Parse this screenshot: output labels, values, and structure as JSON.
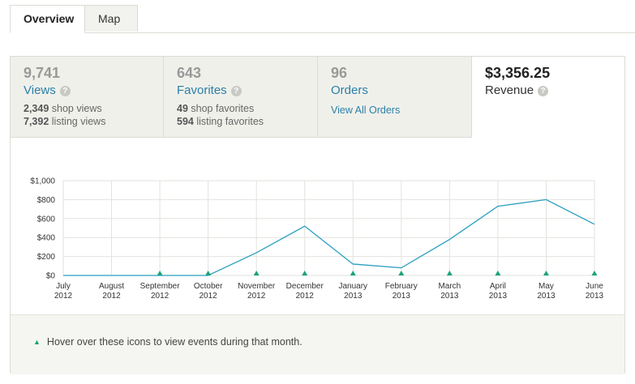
{
  "tabs": [
    {
      "label": "Overview"
    },
    {
      "label": "Map"
    }
  ],
  "stats": {
    "views": {
      "number": "9,741",
      "label": "Views",
      "lines": [
        {
          "value": "2,349",
          "text": "shop views"
        },
        {
          "value": "7,392",
          "text": "listing views"
        }
      ]
    },
    "favorites": {
      "number": "643",
      "label": "Favorites",
      "lines": [
        {
          "value": "49",
          "text": "shop favorites"
        },
        {
          "value": "594",
          "text": "listing favorites"
        }
      ]
    },
    "orders": {
      "number": "96",
      "label": "Orders",
      "link": "View All Orders"
    },
    "revenue": {
      "number": "$3,356.25",
      "label": "Revenue"
    }
  },
  "help_icon": "question-mark-icon",
  "footer": {
    "note": "Hover over these icons to view events during that month."
  },
  "colors": {
    "line": "#2a9fbf",
    "event_marker": "#1aa37c",
    "link": "#2a80a8"
  },
  "chart_data": {
    "type": "line",
    "ylim": [
      0,
      1000
    ],
    "yticks": [
      "$0",
      "$200",
      "$400",
      "$600",
      "$800",
      "$1,000"
    ],
    "categories": [
      [
        "July",
        "2012"
      ],
      [
        "August",
        "2012"
      ],
      [
        "September",
        "2012"
      ],
      [
        "October",
        "2012"
      ],
      [
        "November",
        "2012"
      ],
      [
        "December",
        "2012"
      ],
      [
        "January",
        "2013"
      ],
      [
        "February",
        "2013"
      ],
      [
        "March",
        "2013"
      ],
      [
        "April",
        "2013"
      ],
      [
        "May",
        "2013"
      ],
      [
        "June",
        "2013"
      ]
    ],
    "series": [
      {
        "values": [
          0,
          0,
          0,
          0,
          240,
          520,
          120,
          80,
          380,
          730,
          800,
          540
        ]
      }
    ],
    "event_markers": [
      false,
      false,
      true,
      true,
      true,
      true,
      true,
      true,
      true,
      true,
      true,
      true
    ],
    "grid": true
  }
}
